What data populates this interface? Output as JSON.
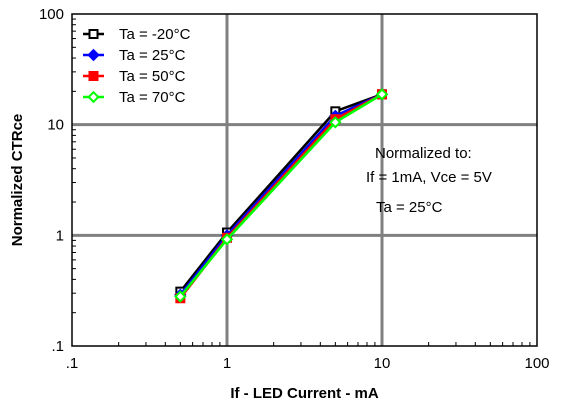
{
  "chart_data": {
    "type": "line",
    "title": "",
    "xlabel": "If - LED Current - mA",
    "ylabel": "Normalized CTRce",
    "x_scale": "log",
    "y_scale": "log",
    "xlim": [
      0.1,
      100
    ],
    "ylim": [
      0.1,
      100
    ],
    "x_ticks": [
      0.1,
      1,
      10,
      100
    ],
    "y_ticks": [
      0.1,
      1,
      10,
      100
    ],
    "x_tick_labels": [
      ".1",
      "1",
      "10",
      "100"
    ],
    "y_tick_labels": [
      ".1",
      "1",
      "10",
      "100"
    ],
    "grid": true,
    "legend_position": "top-left",
    "annotation_lines": [
      "Normalized to:",
      "If = 1mA, Vce = 5V",
      "Ta = 25°C"
    ],
    "series": [
      {
        "name": "Ta = -20°C",
        "color": "#000000",
        "marker": "square-open",
        "x": [
          0.5,
          1,
          5,
          10
        ],
        "y": [
          0.31,
          1.06,
          13.2,
          18.8
        ]
      },
      {
        "name": "Ta = 25°C",
        "color": "#0000ff",
        "marker": "diamond-filled",
        "x": [
          0.5,
          1,
          5,
          10
        ],
        "y": [
          0.29,
          1.0,
          12.0,
          18.8
        ]
      },
      {
        "name": "Ta = 50°C",
        "color": "#ff0000",
        "marker": "square-filled",
        "x": [
          0.5,
          1,
          5,
          10
        ],
        "y": [
          0.27,
          0.95,
          11.2,
          18.8
        ]
      },
      {
        "name": "Ta = 70°C",
        "color": "#00ff00",
        "marker": "diamond-open",
        "x": [
          0.5,
          1,
          5,
          10
        ],
        "y": [
          0.28,
          0.92,
          10.5,
          18.8
        ]
      }
    ]
  }
}
